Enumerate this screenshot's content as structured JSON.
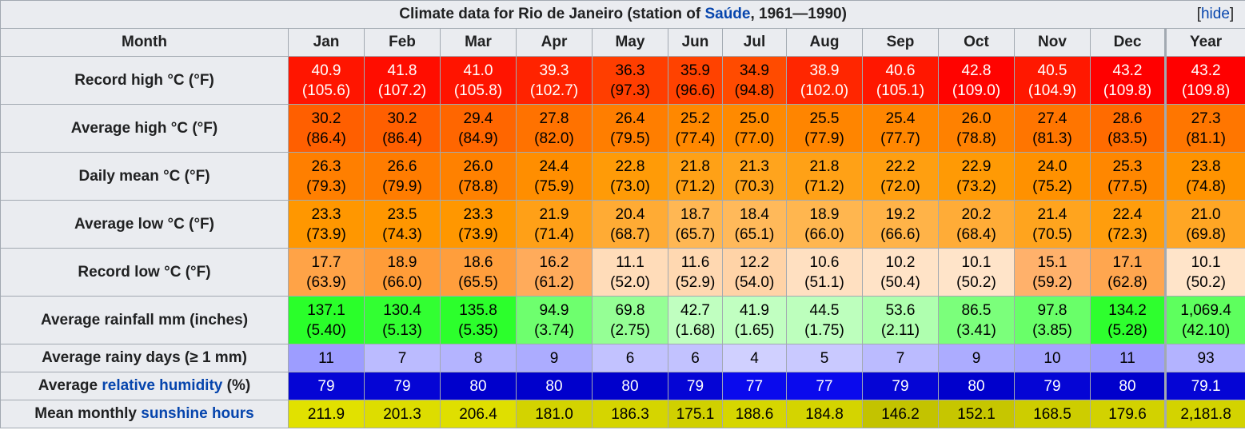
{
  "table": {
    "caption_prefix": "Climate data for Rio de Janeiro (station of ",
    "caption_link": "Saúde",
    "caption_suffix": ", 1961—1990)",
    "hide_label": "hide",
    "month_header": "Month",
    "months": [
      "Jan",
      "Feb",
      "Mar",
      "Apr",
      "May",
      "Jun",
      "Jul",
      "Aug",
      "Sep",
      "Oct",
      "Nov",
      "Dec",
      "Year"
    ],
    "rows": [
      {
        "label_pre": "Record high °C (°F)",
        "label_link": "",
        "label_post": "",
        "tall": true,
        "cells": [
          {
            "c": "40.9",
            "f": "(105.6)",
            "bg": "#ff1500",
            "fg": "#ffffff"
          },
          {
            "c": "41.8",
            "f": "(107.2)",
            "bg": "#ff0d00",
            "fg": "#ffffff"
          },
          {
            "c": "41.0",
            "f": "(105.8)",
            "bg": "#ff1400",
            "fg": "#ffffff"
          },
          {
            "c": "39.3",
            "f": "(102.7)",
            "bg": "#ff2300",
            "fg": "#ffffff"
          },
          {
            "c": "36.3",
            "f": "(97.3)",
            "bg": "#ff3e00",
            "fg": "#000000"
          },
          {
            "c": "35.9",
            "f": "(96.6)",
            "bg": "#ff4200",
            "fg": "#000000"
          },
          {
            "c": "34.9",
            "f": "(94.8)",
            "bg": "#ff4b00",
            "fg": "#000000"
          },
          {
            "c": "38.9",
            "f": "(102.0)",
            "bg": "#ff2600",
            "fg": "#ffffff"
          },
          {
            "c": "40.6",
            "f": "(105.1)",
            "bg": "#ff1700",
            "fg": "#ffffff"
          },
          {
            "c": "42.8",
            "f": "(109.0)",
            "bg": "#ff0300",
            "fg": "#ffffff"
          },
          {
            "c": "40.5",
            "f": "(104.9)",
            "bg": "#ff1800",
            "fg": "#ffffff"
          },
          {
            "c": "43.2",
            "f": "(109.8)",
            "bg": "#ff0000",
            "fg": "#ffffff"
          },
          {
            "c": "43.2",
            "f": "(109.8)",
            "bg": "#ff0000",
            "fg": "#ffffff"
          }
        ]
      },
      {
        "label_pre": "Average high °C (°F)",
        "label_link": "",
        "label_post": "",
        "tall": true,
        "cells": [
          {
            "c": "30.2",
            "f": "(86.4)",
            "bg": "#ff5f00",
            "fg": "#000000"
          },
          {
            "c": "30.2",
            "f": "(86.4)",
            "bg": "#ff5f00",
            "fg": "#000000"
          },
          {
            "c": "29.4",
            "f": "(84.9)",
            "bg": "#ff6600",
            "fg": "#000000"
          },
          {
            "c": "27.8",
            "f": "(82.0)",
            "bg": "#ff7200",
            "fg": "#000000"
          },
          {
            "c": "26.4",
            "f": "(79.5)",
            "bg": "#ff7e00",
            "fg": "#000000"
          },
          {
            "c": "25.2",
            "f": "(77.4)",
            "bg": "#ff8800",
            "fg": "#000000"
          },
          {
            "c": "25.0",
            "f": "(77.0)",
            "bg": "#ff8a00",
            "fg": "#000000"
          },
          {
            "c": "25.5",
            "f": "(77.9)",
            "bg": "#ff8500",
            "fg": "#000000"
          },
          {
            "c": "25.4",
            "f": "(77.7)",
            "bg": "#ff8600",
            "fg": "#000000"
          },
          {
            "c": "26.0",
            "f": "(78.8)",
            "bg": "#ff8100",
            "fg": "#000000"
          },
          {
            "c": "27.4",
            "f": "(81.3)",
            "bg": "#ff7500",
            "fg": "#000000"
          },
          {
            "c": "28.6",
            "f": "(83.5)",
            "bg": "#ff6b00",
            "fg": "#000000"
          },
          {
            "c": "27.3",
            "f": "(81.1)",
            "bg": "#ff7600",
            "fg": "#000000"
          }
        ]
      },
      {
        "label_pre": "Daily mean °C (°F)",
        "label_link": "",
        "label_post": "",
        "tall": true,
        "cells": [
          {
            "c": "26.3",
            "f": "(79.3)",
            "bg": "#ff7f00",
            "fg": "#000000"
          },
          {
            "c": "26.6",
            "f": "(79.9)",
            "bg": "#ff7c00",
            "fg": "#000000"
          },
          {
            "c": "26.0",
            "f": "(78.8)",
            "bg": "#ff8100",
            "fg": "#000000"
          },
          {
            "c": "24.4",
            "f": "(75.9)",
            "bg": "#ff8e00",
            "fg": "#000000"
          },
          {
            "c": "22.8",
            "f": "(73.0)",
            "bg": "#ff9b07",
            "fg": "#000000"
          },
          {
            "c": "21.8",
            "f": "(71.2)",
            "bg": "#ffa116",
            "fg": "#000000"
          },
          {
            "c": "21.3",
            "f": "(70.3)",
            "bg": "#ffa41d",
            "fg": "#000000"
          },
          {
            "c": "21.8",
            "f": "(71.2)",
            "bg": "#ffa116",
            "fg": "#000000"
          },
          {
            "c": "22.2",
            "f": "(72.0)",
            "bg": "#ff9f10",
            "fg": "#000000"
          },
          {
            "c": "22.9",
            "f": "(73.2)",
            "bg": "#ff9a05",
            "fg": "#000000"
          },
          {
            "c": "24.0",
            "f": "(75.2)",
            "bg": "#ff9100",
            "fg": "#000000"
          },
          {
            "c": "25.3",
            "f": "(77.5)",
            "bg": "#ff8700",
            "fg": "#000000"
          },
          {
            "c": "23.8",
            "f": "(74.8)",
            "bg": "#ff9300",
            "fg": "#000000"
          }
        ]
      },
      {
        "label_pre": "Average low °C (°F)",
        "label_link": "",
        "label_post": "",
        "tall": true,
        "cells": [
          {
            "c": "23.3",
            "f": "(73.9)",
            "bg": "#ff9700",
            "fg": "#000000"
          },
          {
            "c": "23.5",
            "f": "(74.3)",
            "bg": "#ff9600",
            "fg": "#000000"
          },
          {
            "c": "23.3",
            "f": "(73.9)",
            "bg": "#ff9700",
            "fg": "#000000"
          },
          {
            "c": "21.9",
            "f": "(71.4)",
            "bg": "#ffa017",
            "fg": "#000000"
          },
          {
            "c": "20.4",
            "f": "(68.7)",
            "bg": "#ffab34",
            "fg": "#000000"
          },
          {
            "c": "18.7",
            "f": "(65.7)",
            "bg": "#ffb753",
            "fg": "#000000"
          },
          {
            "c": "18.4",
            "f": "(65.1)",
            "bg": "#ffb95a",
            "fg": "#000000"
          },
          {
            "c": "18.9",
            "f": "(66.0)",
            "bg": "#ffb64f",
            "fg": "#000000"
          },
          {
            "c": "19.2",
            "f": "(66.6)",
            "bg": "#ffb348",
            "fg": "#000000"
          },
          {
            "c": "20.2",
            "f": "(68.4)",
            "bg": "#ffac37",
            "fg": "#000000"
          },
          {
            "c": "21.4",
            "f": "(70.5)",
            "bg": "#ffa41e",
            "fg": "#000000"
          },
          {
            "c": "22.4",
            "f": "(72.3)",
            "bg": "#ff9d0c",
            "fg": "#000000"
          },
          {
            "c": "21.0",
            "f": "(69.8)",
            "bg": "#ffa624",
            "fg": "#000000"
          }
        ]
      },
      {
        "label_pre": "Record low °C (°F)",
        "label_link": "",
        "label_post": "",
        "tall": true,
        "cells": [
          {
            "c": "17.7",
            "f": "(63.9)",
            "bg": "#ffa347",
            "fg": "#000000"
          },
          {
            "c": "18.9",
            "f": "(66.0)",
            "bg": "#ff9c38",
            "fg": "#000000"
          },
          {
            "c": "18.6",
            "f": "(65.5)",
            "bg": "#ff9e3c",
            "fg": "#000000"
          },
          {
            "c": "16.2",
            "f": "(61.2)",
            "bg": "#ffab5b",
            "fg": "#000000"
          },
          {
            "c": "11.1",
            "f": "(52.0)",
            "bg": "#ffdcb9",
            "fg": "#000000"
          },
          {
            "c": "11.6",
            "f": "(52.9)",
            "bg": "#ffd8b1",
            "fg": "#000000"
          },
          {
            "c": "12.2",
            "f": "(54.0)",
            "bg": "#ffd3a7",
            "fg": "#000000"
          },
          {
            "c": "10.6",
            "f": "(51.1)",
            "bg": "#ffe0c1",
            "fg": "#000000"
          },
          {
            "c": "10.2",
            "f": "(50.4)",
            "bg": "#ffe3c7",
            "fg": "#000000"
          },
          {
            "c": "10.1",
            "f": "(50.2)",
            "bg": "#ffe4c9",
            "fg": "#000000"
          },
          {
            "c": "15.1",
            "f": "(59.2)",
            "bg": "#ffb16b",
            "fg": "#000000"
          },
          {
            "c": "17.1",
            "f": "(62.8)",
            "bg": "#ffa64f",
            "fg": "#000000"
          },
          {
            "c": "10.1",
            "f": "(50.2)",
            "bg": "#ffe4c9",
            "fg": "#000000"
          }
        ]
      },
      {
        "label_pre": "Average rainfall mm (inches)",
        "label_link": "",
        "label_post": "",
        "tall": true,
        "cells": [
          {
            "c": "137.1",
            "f": "(5.40)",
            "bg": "#2aff2a",
            "fg": "#000000"
          },
          {
            "c": "130.4",
            "f": "(5.13)",
            "bg": "#32ff32",
            "fg": "#000000"
          },
          {
            "c": "135.8",
            "f": "(5.35)",
            "bg": "#2cff2c",
            "fg": "#000000"
          },
          {
            "c": "94.9",
            "f": "(3.74)",
            "bg": "#6eff6e",
            "fg": "#000000"
          },
          {
            "c": "69.8",
            "f": "(2.75)",
            "bg": "#95ff95",
            "fg": "#000000"
          },
          {
            "c": "42.7",
            "f": "(1.68)",
            "bg": "#c0ffc0",
            "fg": "#000000"
          },
          {
            "c": "41.9",
            "f": "(1.65)",
            "bg": "#c1ffc1",
            "fg": "#000000"
          },
          {
            "c": "44.5",
            "f": "(1.75)",
            "bg": "#bdffbd",
            "fg": "#000000"
          },
          {
            "c": "53.6",
            "f": "(2.11)",
            "bg": "#afffaf",
            "fg": "#000000"
          },
          {
            "c": "86.5",
            "f": "(3.41)",
            "bg": "#7bff7b",
            "fg": "#000000"
          },
          {
            "c": "97.8",
            "f": "(3.85)",
            "bg": "#69ff69",
            "fg": "#000000"
          },
          {
            "c": "134.2",
            "f": "(5.28)",
            "bg": "#2eff2e",
            "fg": "#000000"
          },
          {
            "c": "1,069.4",
            "f": "(42.10)",
            "bg": "#5eff5e",
            "fg": "#000000"
          }
        ]
      },
      {
        "label_pre": "Average rainy days (≥ 1 mm)",
        "label_link": "",
        "label_post": "",
        "tall": false,
        "cells": [
          {
            "c": "11",
            "bg": "#9d9dff",
            "fg": "#000000"
          },
          {
            "c": "7",
            "bg": "#bbbbff",
            "fg": "#000000"
          },
          {
            "c": "8",
            "bg": "#b4b4ff",
            "fg": "#000000"
          },
          {
            "c": "9",
            "bg": "#acacff",
            "fg": "#000000"
          },
          {
            "c": "6",
            "bg": "#c2c2ff",
            "fg": "#000000"
          },
          {
            "c": "6",
            "bg": "#c2c2ff",
            "fg": "#000000"
          },
          {
            "c": "4",
            "bg": "#d0d0ff",
            "fg": "#000000"
          },
          {
            "c": "5",
            "bg": "#c9c9ff",
            "fg": "#000000"
          },
          {
            "c": "7",
            "bg": "#bbbbff",
            "fg": "#000000"
          },
          {
            "c": "9",
            "bg": "#acacff",
            "fg": "#000000"
          },
          {
            "c": "10",
            "bg": "#a5a5ff",
            "fg": "#000000"
          },
          {
            "c": "11",
            "bg": "#9d9dff",
            "fg": "#000000"
          },
          {
            "c": "93",
            "bg": "#b3b3ff",
            "fg": "#000000"
          }
        ]
      },
      {
        "label_pre": "Average ",
        "label_link": "relative humidity",
        "label_post": " (%)",
        "tall": false,
        "cells": [
          {
            "c": "79",
            "bg": "#0505d5",
            "fg": "#ffffff"
          },
          {
            "c": "79",
            "bg": "#0505d5",
            "fg": "#ffffff"
          },
          {
            "c": "80",
            "bg": "#0000cc",
            "fg": "#ffffff"
          },
          {
            "c": "80",
            "bg": "#0000cc",
            "fg": "#ffffff"
          },
          {
            "c": "80",
            "bg": "#0000cc",
            "fg": "#ffffff"
          },
          {
            "c": "79",
            "bg": "#0505d5",
            "fg": "#ffffff"
          },
          {
            "c": "77",
            "bg": "#0a0aed",
            "fg": "#ffffff"
          },
          {
            "c": "77",
            "bg": "#0a0aed",
            "fg": "#ffffff"
          },
          {
            "c": "79",
            "bg": "#0505d5",
            "fg": "#ffffff"
          },
          {
            "c": "80",
            "bg": "#0000cc",
            "fg": "#ffffff"
          },
          {
            "c": "79",
            "bg": "#0505d5",
            "fg": "#ffffff"
          },
          {
            "c": "80",
            "bg": "#0000cc",
            "fg": "#ffffff"
          },
          {
            "c": "79.1",
            "bg": "#0505d5",
            "fg": "#ffffff"
          }
        ]
      },
      {
        "label_pre": "Mean monthly ",
        "label_link": "sunshine hours",
        "label_post": "",
        "tall": false,
        "cells": [
          {
            "c": "211.9",
            "bg": "#e1e100",
            "fg": "#000000"
          },
          {
            "c": "201.3",
            "bg": "#dddd00",
            "fg": "#000000"
          },
          {
            "c": "206.4",
            "bg": "#dfdf00",
            "fg": "#000000"
          },
          {
            "c": "181.0",
            "bg": "#d3d300",
            "fg": "#000000"
          },
          {
            "c": "186.3",
            "bg": "#d5d500",
            "fg": "#000000"
          },
          {
            "c": "175.1",
            "bg": "#d0d000",
            "fg": "#000000"
          },
          {
            "c": "188.6",
            "bg": "#d6d600",
            "fg": "#000000"
          },
          {
            "c": "184.8",
            "bg": "#d4d400",
            "fg": "#000000"
          },
          {
            "c": "146.2",
            "bg": "#c3c300",
            "fg": "#000000"
          },
          {
            "c": "152.1",
            "bg": "#c6c600",
            "fg": "#000000"
          },
          {
            "c": "168.5",
            "bg": "#cdcd00",
            "fg": "#000000"
          },
          {
            "c": "179.6",
            "bg": "#d2d200",
            "fg": "#000000"
          },
          {
            "c": "2,181.8",
            "bg": "#d3d300",
            "fg": "#000000"
          }
        ]
      }
    ]
  }
}
